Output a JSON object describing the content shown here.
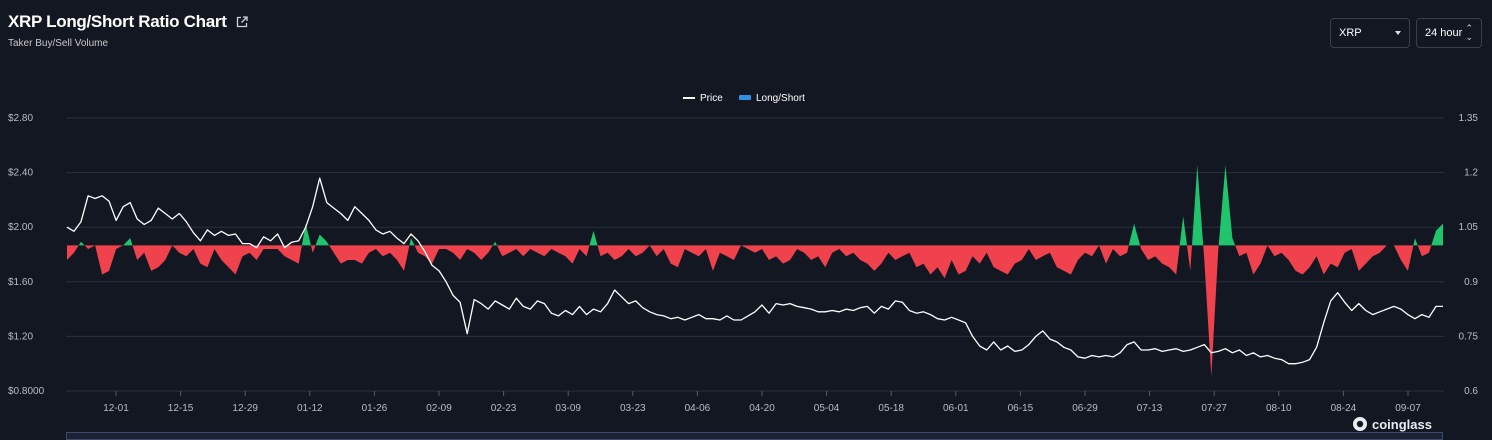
{
  "header": {
    "title": "XRP Long/Short Ratio Chart",
    "subtitle": "Taker Buy/Sell Volume"
  },
  "controls": {
    "coin": "XRP",
    "period": "24 hour"
  },
  "legend": {
    "price_label": "Price",
    "ratio_label": "Long/Short"
  },
  "watermark": "coinglass",
  "colors": {
    "background": "#131722",
    "price_line": "#ffffff",
    "long": "#1fc46d",
    "short": "#f0424d",
    "legend_ratio": "#2f8fe0",
    "grid": "#2b303b"
  },
  "chart_data": {
    "type": "line",
    "title": "XRP Long/Short Ratio Chart",
    "x_ticks": [
      "12-01",
      "12-15",
      "12-29",
      "01-12",
      "01-26",
      "02-09",
      "02-23",
      "03-09",
      "03-23",
      "04-06",
      "04-20",
      "05-04",
      "05-18",
      "06-01",
      "06-15",
      "06-29",
      "07-13",
      "07-27",
      "08-10",
      "08-24",
      "09-07"
    ],
    "y_left": {
      "ticks": [
        "$0.8000",
        "$1.20",
        "$1.60",
        "$2.00",
        "$2.40",
        "$2.80"
      ],
      "range": [
        0.8,
        2.8
      ]
    },
    "y_right": {
      "ticks": [
        "0.6",
        "0.75",
        "0.9",
        "1.05",
        "1.2",
        "1.35"
      ],
      "range": [
        0.6,
        1.35
      ],
      "baseline": 1.0
    },
    "series": [
      {
        "name": "Price",
        "axis": "left",
        "values": [
          2.0,
          1.97,
          2.04,
          2.23,
          2.21,
          2.23,
          2.19,
          2.05,
          2.15,
          2.18,
          2.06,
          2.02,
          2.05,
          2.14,
          2.1,
          2.06,
          2.1,
          2.04,
          1.96,
          1.9,
          1.98,
          1.94,
          1.97,
          1.94,
          1.95,
          1.88,
          1.88,
          1.85,
          1.93,
          1.9,
          1.95,
          1.85,
          1.89,
          1.9,
          2.0,
          2.15,
          2.36,
          2.18,
          2.14,
          2.1,
          2.05,
          2.15,
          2.1,
          2.05,
          1.98,
          1.95,
          1.97,
          1.92,
          1.88,
          1.95,
          1.9,
          1.82,
          1.72,
          1.68,
          1.6,
          1.5,
          1.45,
          1.22,
          1.47,
          1.44,
          1.4,
          1.46,
          1.43,
          1.4,
          1.48,
          1.42,
          1.4,
          1.46,
          1.44,
          1.37,
          1.35,
          1.39,
          1.36,
          1.42,
          1.36,
          1.4,
          1.38,
          1.44,
          1.54,
          1.49,
          1.44,
          1.46,
          1.41,
          1.38,
          1.36,
          1.35,
          1.33,
          1.34,
          1.32,
          1.34,
          1.36,
          1.33,
          1.33,
          1.32,
          1.35,
          1.32,
          1.32,
          1.35,
          1.38,
          1.43,
          1.37,
          1.44,
          1.43,
          1.44,
          1.42,
          1.41,
          1.4,
          1.38,
          1.38,
          1.39,
          1.38,
          1.4,
          1.39,
          1.41,
          1.42,
          1.37,
          1.42,
          1.4,
          1.46,
          1.45,
          1.39,
          1.37,
          1.38,
          1.36,
          1.33,
          1.32,
          1.34,
          1.32,
          1.3,
          1.2,
          1.13,
          1.1,
          1.16,
          1.1,
          1.13,
          1.09,
          1.1,
          1.14,
          1.2,
          1.24,
          1.18,
          1.16,
          1.12,
          1.1,
          1.05,
          1.04,
          1.06,
          1.05,
          1.06,
          1.05,
          1.08,
          1.14,
          1.16,
          1.1,
          1.1,
          1.11,
          1.09,
          1.1,
          1.11,
          1.09,
          1.1,
          1.12,
          1.14,
          1.08,
          1.09,
          1.11,
          1.08,
          1.1,
          1.06,
          1.08,
          1.05,
          1.06,
          1.04,
          1.03,
          1.0,
          1.0,
          1.01,
          1.03,
          1.12,
          1.3,
          1.46,
          1.52,
          1.45,
          1.39,
          1.44,
          1.39,
          1.36,
          1.38,
          1.4,
          1.42,
          1.4,
          1.36,
          1.33,
          1.36,
          1.34,
          1.42,
          1.42
        ]
      },
      {
        "name": "Long/Short",
        "axis": "right",
        "values": [
          0.96,
          0.98,
          1.01,
          0.99,
          1.0,
          0.92,
          0.93,
          0.99,
          1.0,
          1.02,
          0.96,
          0.98,
          0.93,
          0.94,
          0.96,
          1.0,
          0.98,
          0.97,
          0.99,
          0.95,
          0.94,
          0.99,
          0.96,
          0.94,
          0.92,
          0.97,
          0.98,
          0.96,
          0.99,
          0.99,
          0.99,
          0.97,
          0.96,
          0.95,
          1.06,
          0.98,
          1.03,
          1.01,
          0.98,
          0.95,
          0.96,
          0.96,
          0.95,
          0.98,
          0.99,
          0.97,
          0.98,
          0.96,
          0.93,
          1.02,
          0.98,
          0.97,
          0.95,
          0.99,
          0.99,
          0.98,
          0.96,
          0.99,
          0.98,
          0.96,
          0.98,
          1.01,
          0.97,
          0.98,
          0.99,
          0.97,
          0.99,
          0.98,
          0.97,
          0.99,
          0.98,
          0.97,
          0.95,
          0.99,
          0.97,
          1.04,
          0.97,
          0.98,
          0.96,
          0.97,
          0.99,
          0.97,
          0.98,
          1.0,
          0.97,
          0.99,
          0.95,
          0.94,
          0.99,
          0.98,
          0.97,
          0.99,
          0.93,
          0.98,
          0.97,
          0.96,
          1.0,
          0.99,
          0.98,
          0.99,
          0.96,
          0.97,
          0.95,
          0.96,
          0.99,
          0.98,
          0.96,
          0.97,
          0.94,
          0.98,
          0.99,
          0.97,
          0.98,
          0.96,
          0.95,
          0.93,
          0.95,
          0.98,
          0.96,
          0.97,
          0.98,
          0.94,
          0.95,
          0.92,
          0.94,
          0.91,
          0.96,
          0.92,
          0.93,
          0.97,
          0.95,
          0.98,
          0.94,
          0.93,
          0.92,
          0.95,
          0.96,
          0.99,
          0.96,
          0.97,
          0.98,
          0.94,
          0.93,
          0.92,
          0.96,
          0.98,
          0.97,
          1.0,
          0.95,
          0.99,
          0.97,
          0.98,
          1.06,
          0.99,
          0.96,
          0.97,
          0.95,
          0.94,
          0.92,
          1.08,
          0.93,
          1.22,
          0.96,
          0.64,
          0.99,
          1.22,
          1.02,
          0.97,
          0.98,
          0.92,
          0.95,
          1.0,
          0.97,
          0.98,
          0.96,
          0.93,
          0.92,
          0.94,
          0.97,
          0.92,
          0.95,
          0.94,
          0.98,
          0.99,
          0.93,
          0.95,
          0.97,
          0.98,
          1.0,
          1.0,
          0.96,
          0.93,
          1.02,
          0.97,
          0.98,
          1.04,
          1.06
        ]
      }
    ],
    "legend_position": "top-center",
    "grid": true
  }
}
